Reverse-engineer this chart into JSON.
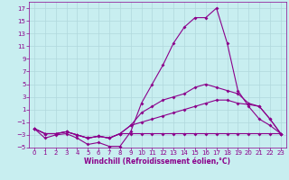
{
  "x": [
    0,
    1,
    2,
    3,
    4,
    5,
    6,
    7,
    8,
    9,
    10,
    11,
    12,
    13,
    14,
    15,
    16,
    17,
    18,
    19,
    20,
    21,
    22,
    23
  ],
  "line1": [
    -2.0,
    -3.5,
    -3.0,
    -2.8,
    -3.5,
    -4.5,
    -4.2,
    -4.8,
    -4.8,
    -2.5,
    2.0,
    5.0,
    8.0,
    11.5,
    14.0,
    15.5,
    15.5,
    17.0,
    11.5,
    4.0,
    1.5,
    -0.5,
    -1.5,
    -2.8
  ],
  "line2": [
    -2.0,
    -2.8,
    -2.8,
    -2.5,
    -3.0,
    -3.5,
    -3.2,
    -3.5,
    -2.8,
    -1.5,
    0.5,
    1.5,
    2.5,
    3.0,
    3.5,
    4.5,
    5.0,
    4.5,
    4.0,
    3.5,
    2.0,
    1.5,
    -0.5,
    -2.8
  ],
  "line3": [
    -2.0,
    -2.8,
    -2.8,
    -2.5,
    -3.0,
    -3.5,
    -3.2,
    -3.5,
    -2.8,
    -1.5,
    -1.0,
    -0.5,
    0.0,
    0.5,
    1.0,
    1.5,
    2.0,
    2.5,
    2.5,
    2.0,
    1.8,
    1.5,
    -0.5,
    -2.8
  ],
  "line4": [
    -2.0,
    -2.8,
    -2.8,
    -2.5,
    -3.0,
    -3.5,
    -3.2,
    -3.5,
    -2.8,
    -2.8,
    -2.8,
    -2.8,
    -2.8,
    -2.8,
    -2.8,
    -2.8,
    -2.8,
    -2.8,
    -2.8,
    -2.8,
    -2.8,
    -2.8,
    -2.8,
    -2.8
  ],
  "line_color": "#8B008B",
  "bg_color": "#c8eef0",
  "grid_color": "#b0d8dc",
  "xlabel": "Windchill (Refroidissement éolien,°C)",
  "xlim_min": -0.5,
  "xlim_max": 23.5,
  "ylim_min": -5,
  "ylim_max": 18,
  "yticks": [
    -5,
    -3,
    -1,
    1,
    3,
    5,
    7,
    9,
    11,
    13,
    15,
    17
  ],
  "xticks": [
    0,
    1,
    2,
    3,
    4,
    5,
    6,
    7,
    8,
    9,
    10,
    11,
    12,
    13,
    14,
    15,
    16,
    17,
    18,
    19,
    20,
    21,
    22,
    23
  ],
  "tick_color": "#8B008B",
  "label_fontsize": 5.5,
  "tick_fontsize": 5,
  "marker": "D",
  "markersize": 2.0,
  "linewidth": 0.8
}
